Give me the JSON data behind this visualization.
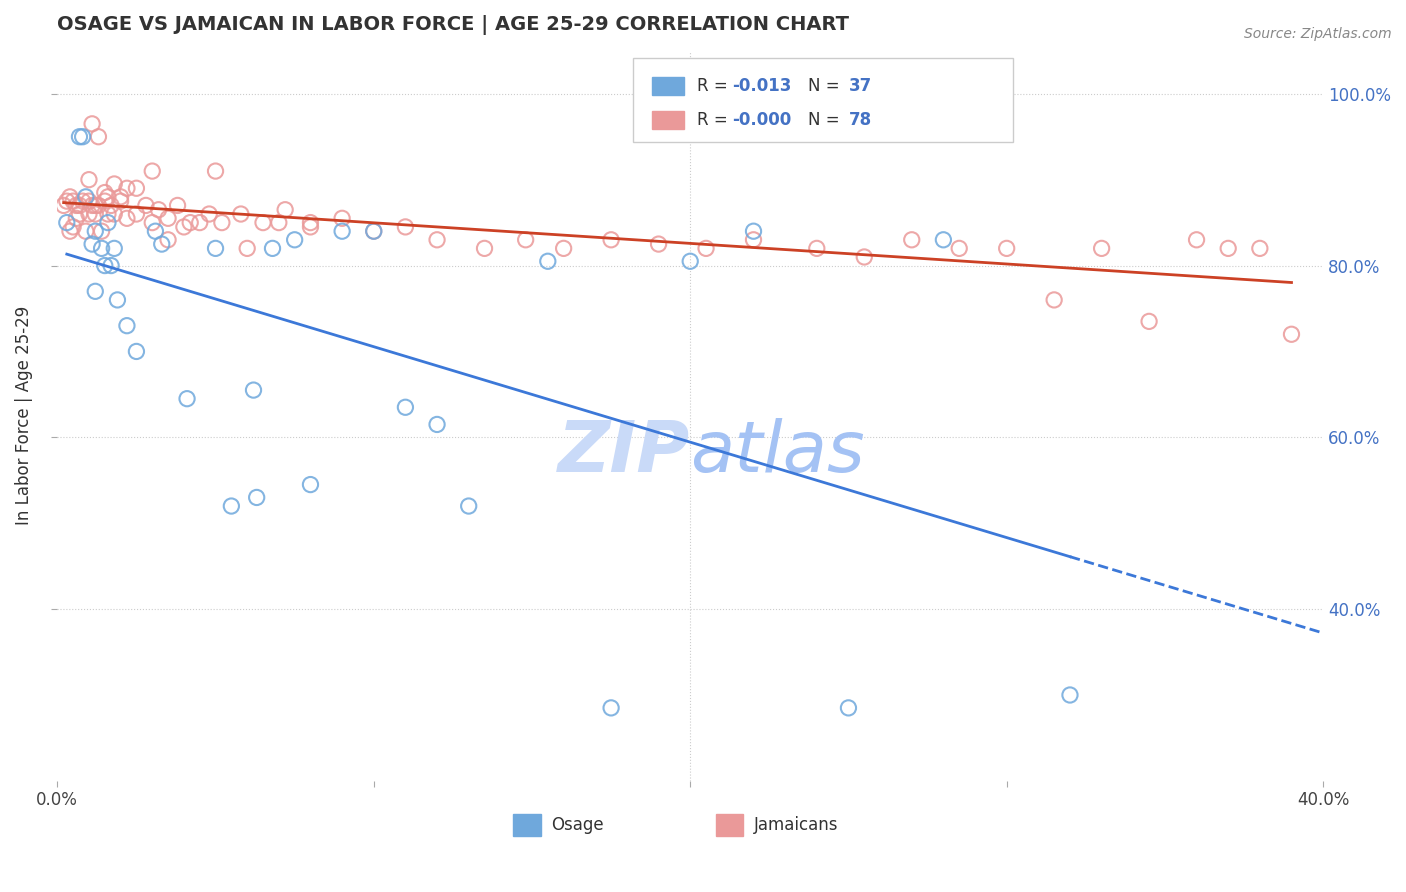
{
  "title": "OSAGE VS JAMAICAN IN LABOR FORCE | AGE 25-29 CORRELATION CHART",
  "source_text": "Source: ZipAtlas.com",
  "xlabel": "",
  "ylabel": "In Labor Force | Age 25-29",
  "xlim": [
    0.0,
    0.4
  ],
  "ylim": [
    0.2,
    1.05
  ],
  "xticks": [
    0.0,
    0.1,
    0.2,
    0.3,
    0.4
  ],
  "xticklabels": [
    "0.0%",
    "",
    "",
    "",
    "40.0%"
  ],
  "ytick_positions": [
    0.4,
    0.6,
    0.8,
    1.0
  ],
  "ytick_labels": [
    "40.0%",
    "60.0%",
    "80.0%",
    "100.0%"
  ],
  "legend_r_blue": "-0.013",
  "legend_n_blue": "37",
  "legend_r_pink": "-0.000",
  "legend_n_pink": "78",
  "blue_color": "#6fa8dc",
  "pink_color": "#ea9999",
  "blue_line_color": "#3c78d8",
  "pink_line_color": "#cc4125",
  "grid_color": "#cccccc",
  "watermark_zip_color": "#c9daf8",
  "watermark_atlas_color": "#a4c2f4",
  "osage_x": [
    0.003,
    0.007,
    0.008,
    0.009,
    0.011,
    0.012,
    0.012,
    0.014,
    0.015,
    0.016,
    0.017,
    0.018,
    0.019,
    0.022,
    0.025,
    0.031,
    0.033,
    0.041,
    0.05,
    0.055,
    0.062,
    0.063,
    0.068,
    0.075,
    0.08,
    0.09,
    0.1,
    0.11,
    0.12,
    0.13,
    0.155,
    0.175,
    0.2,
    0.22,
    0.25,
    0.28,
    0.32
  ],
  "osage_y": [
    0.85,
    0.95,
    0.95,
    0.88,
    0.825,
    0.84,
    0.77,
    0.82,
    0.8,
    0.85,
    0.8,
    0.82,
    0.76,
    0.73,
    0.7,
    0.84,
    0.825,
    0.645,
    0.82,
    0.52,
    0.655,
    0.53,
    0.82,
    0.83,
    0.545,
    0.84,
    0.84,
    0.635,
    0.615,
    0.52,
    0.805,
    0.285,
    0.805,
    0.84,
    0.285,
    0.83,
    0.3
  ],
  "jamaican_x": [
    0.002,
    0.003,
    0.004,
    0.004,
    0.005,
    0.005,
    0.006,
    0.006,
    0.007,
    0.007,
    0.008,
    0.009,
    0.01,
    0.01,
    0.011,
    0.012,
    0.013,
    0.015,
    0.016,
    0.017,
    0.018,
    0.02,
    0.022,
    0.025,
    0.028,
    0.03,
    0.032,
    0.035,
    0.038,
    0.042,
    0.048,
    0.052,
    0.058,
    0.065,
    0.072,
    0.08,
    0.09,
    0.1,
    0.11,
    0.12,
    0.135,
    0.148,
    0.16,
    0.175,
    0.19,
    0.205,
    0.22,
    0.24,
    0.255,
    0.27,
    0.285,
    0.3,
    0.315,
    0.33,
    0.345,
    0.36,
    0.37,
    0.38,
    0.39,
    0.01,
    0.011,
    0.012,
    0.013,
    0.014,
    0.015,
    0.016,
    0.018,
    0.02,
    0.022,
    0.025,
    0.03,
    0.035,
    0.04,
    0.045,
    0.05,
    0.06,
    0.07,
    0.08
  ],
  "jamaican_y": [
    0.87,
    0.875,
    0.88,
    0.84,
    0.875,
    0.845,
    0.87,
    0.855,
    0.87,
    0.86,
    0.875,
    0.84,
    0.875,
    0.86,
    0.87,
    0.86,
    0.87,
    0.875,
    0.86,
    0.87,
    0.86,
    0.875,
    0.855,
    0.86,
    0.87,
    0.85,
    0.865,
    0.855,
    0.87,
    0.85,
    0.86,
    0.85,
    0.86,
    0.85,
    0.865,
    0.845,
    0.855,
    0.84,
    0.845,
    0.83,
    0.82,
    0.83,
    0.82,
    0.83,
    0.825,
    0.82,
    0.83,
    0.82,
    0.81,
    0.83,
    0.82,
    0.82,
    0.76,
    0.82,
    0.735,
    0.83,
    0.82,
    0.82,
    0.72,
    0.9,
    0.965,
    0.87,
    0.95,
    0.84,
    0.885,
    0.88,
    0.895,
    0.88,
    0.89,
    0.89,
    0.91,
    0.83,
    0.845,
    0.85,
    0.91,
    0.82,
    0.85,
    0.85
  ]
}
